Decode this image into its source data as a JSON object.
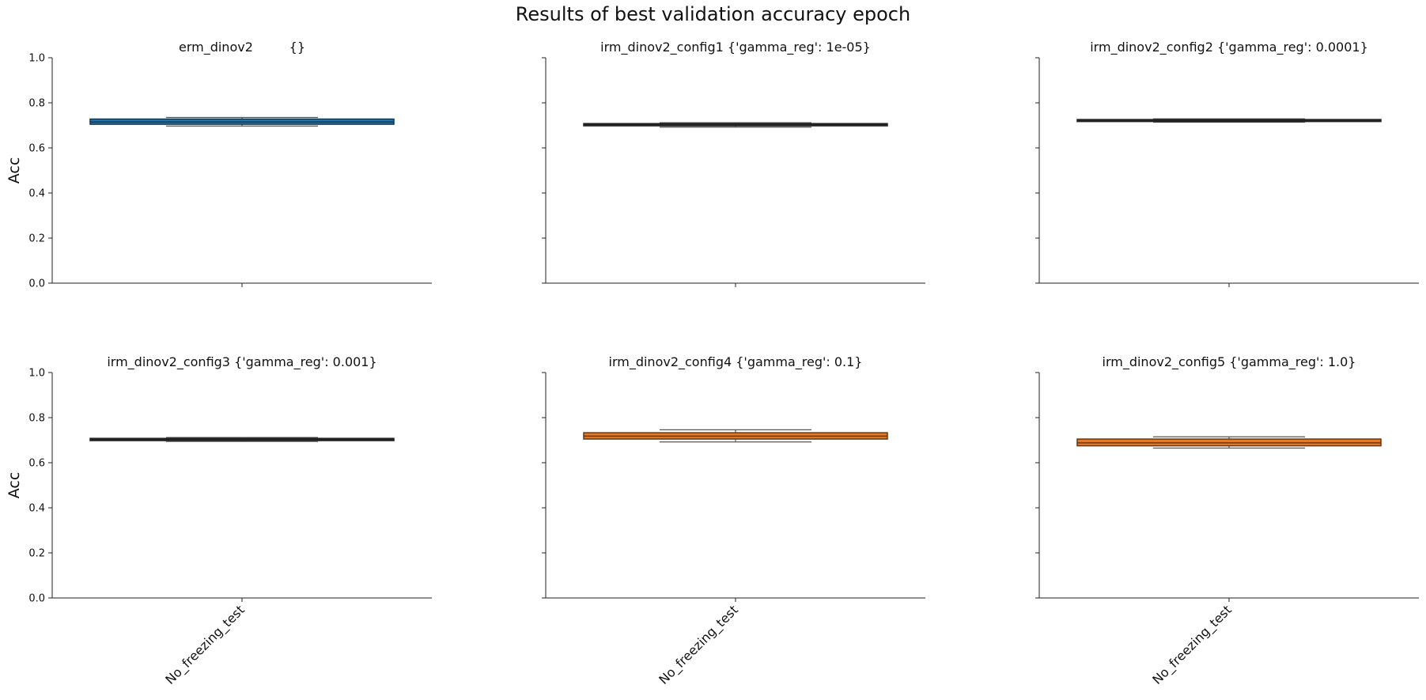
{
  "title": "Results of best validation accuracy epoch",
  "chart_data": [
    {
      "type": "box",
      "title": "erm_dinov2         {}",
      "ylabel": "Acc",
      "ylim": [
        0,
        1.0
      ],
      "yticks": [
        "0.0",
        "0.2",
        "0.4",
        "0.6",
        "0.8",
        "1.0"
      ],
      "categories": [
        "No_freezing_test"
      ],
      "show_xtick_labels": false,
      "color": "#1f77b4",
      "boxes": [
        {
          "whisker_low": 0.697,
          "q1": 0.705,
          "median": 0.715,
          "q3": 0.728,
          "whisker_high": 0.735
        }
      ]
    },
    {
      "type": "box",
      "title": "irm_dinov2_config1 {'gamma_reg': 1e-05}",
      "ylabel": "",
      "ylim": [
        0,
        1.0
      ],
      "yticks": [
        "",
        "",
        "",
        "",
        "",
        ""
      ],
      "categories": [
        "No_freezing_test"
      ],
      "show_xtick_labels": false,
      "color": "#4c4c4c",
      "boxes": [
        {
          "whisker_low": 0.692,
          "q1": 0.698,
          "median": 0.703,
          "q3": 0.708,
          "whisker_high": 0.712
        }
      ]
    },
    {
      "type": "box",
      "title": "irm_dinov2_config2 {'gamma_reg': 0.0001}",
      "ylabel": "",
      "ylim": [
        0,
        1.0
      ],
      "yticks": [
        "",
        "",
        "",
        "",
        "",
        ""
      ],
      "categories": [
        "No_freezing_test"
      ],
      "show_xtick_labels": false,
      "color": "#4c4c4c",
      "boxes": [
        {
          "whisker_low": 0.714,
          "q1": 0.717,
          "median": 0.721,
          "q3": 0.726,
          "whisker_high": 0.729
        }
      ]
    },
    {
      "type": "box",
      "title": "irm_dinov2_config3 {'gamma_reg': 0.001}",
      "ylabel": "Acc",
      "ylim": [
        0,
        1.0
      ],
      "yticks": [
        "0.0",
        "0.2",
        "0.4",
        "0.6",
        "0.8",
        "1.0"
      ],
      "categories": [
        "No_freezing_test"
      ],
      "show_xtick_labels": true,
      "color": "#4c4c4c",
      "boxes": [
        {
          "whisker_low": 0.694,
          "q1": 0.698,
          "median": 0.703,
          "q3": 0.708,
          "whisker_high": 0.712
        }
      ]
    },
    {
      "type": "box",
      "title": "irm_dinov2_config4 {'gamma_reg': 0.1}",
      "ylabel": "",
      "ylim": [
        0,
        1.0
      ],
      "yticks": [
        "",
        "",
        "",
        "",
        "",
        ""
      ],
      "categories": [
        "No_freezing_test"
      ],
      "show_xtick_labels": true,
      "color": "#e07b28",
      "boxes": [
        {
          "whisker_low": 0.692,
          "q1": 0.705,
          "median": 0.718,
          "q3": 0.733,
          "whisker_high": 0.746
        }
      ]
    },
    {
      "type": "box",
      "title": "irm_dinov2_config5 {'gamma_reg': 1.0}",
      "ylabel": "",
      "ylim": [
        0,
        1.0
      ],
      "yticks": [
        "",
        "",
        "",
        "",
        "",
        ""
      ],
      "categories": [
        "No_freezing_test"
      ],
      "show_xtick_labels": true,
      "color": "#e07b28",
      "boxes": [
        {
          "whisker_low": 0.665,
          "q1": 0.675,
          "median": 0.688,
          "q3": 0.705,
          "whisker_high": 0.715
        }
      ]
    }
  ]
}
